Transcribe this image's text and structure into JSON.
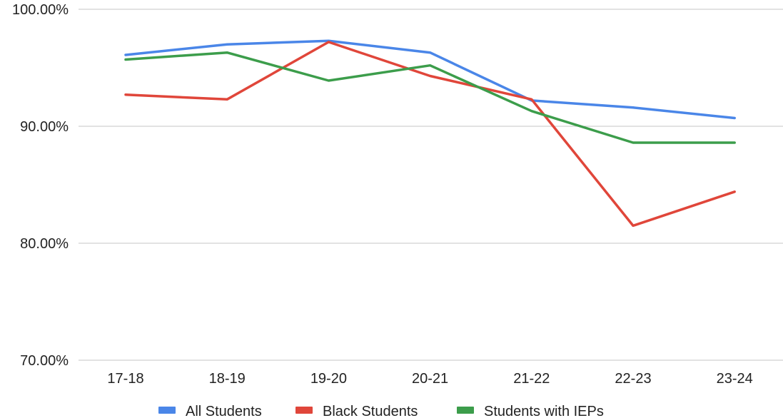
{
  "chart_data": {
    "type": "line",
    "title": "",
    "xlabel": "",
    "ylabel": "",
    "categories": [
      "17-18",
      "18-19",
      "19-20",
      "20-21",
      "21-22",
      "22-23",
      "23-24"
    ],
    "ylim": [
      70,
      100
    ],
    "yticks": [
      {
        "value": 70,
        "label": "70.00%"
      },
      {
        "value": 80,
        "label": "80.00%"
      },
      {
        "value": 90,
        "label": "90.00%"
      },
      {
        "value": 100,
        "label": "100.00%"
      }
    ],
    "grid": true,
    "legend_position": "bottom",
    "series": [
      {
        "name": "All Students",
        "color": "#4a86e8",
        "values": [
          96.1,
          97.0,
          97.3,
          96.3,
          92.2,
          91.6,
          90.7
        ]
      },
      {
        "name": "Black Students",
        "color": "#e0463a",
        "values": [
          92.7,
          92.3,
          97.2,
          94.3,
          92.3,
          81.5,
          84.4
        ]
      },
      {
        "name": "Students with IEPs",
        "color": "#3c9d4b",
        "values": [
          95.7,
          96.3,
          93.9,
          95.2,
          91.3,
          88.6,
          88.6
        ]
      }
    ]
  }
}
